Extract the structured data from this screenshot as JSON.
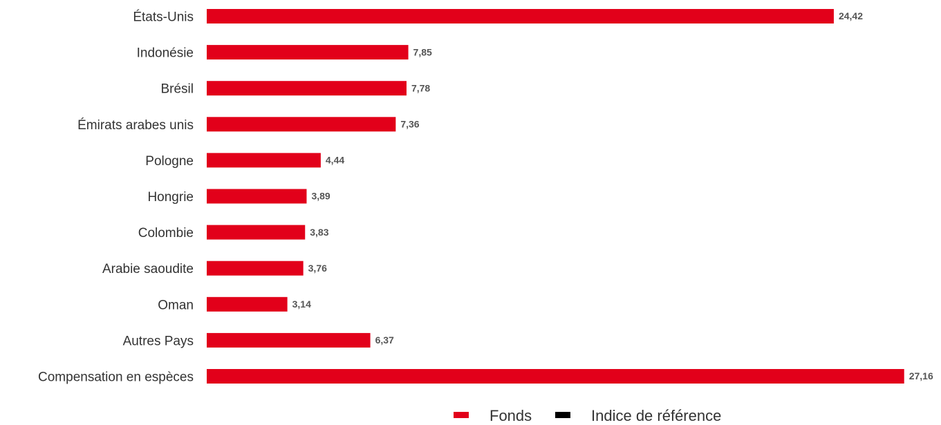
{
  "chart_data": {
    "type": "bar",
    "orientation": "horizontal",
    "categories": [
      "États-Unis",
      "Indonésie",
      "Brésil",
      "Émirats arabes unis",
      "Pologne",
      "Hongrie",
      "Colombie",
      "Arabie saoudite",
      "Oman",
      "Autres Pays",
      "Compensation en espèces"
    ],
    "series": [
      {
        "name": "Fonds",
        "color": "#e2001a",
        "values": [
          24.42,
          7.85,
          7.78,
          7.36,
          4.44,
          3.89,
          3.83,
          3.76,
          3.14,
          6.37,
          27.16
        ],
        "value_labels": [
          "24,42",
          "7,85",
          "7,78",
          "7,36",
          "4,44",
          "3,89",
          "3,83",
          "3,76",
          "3,14",
          "6,37",
          "27,16"
        ]
      },
      {
        "name": "Indice de référence",
        "color": "#000000",
        "values": [
          null,
          null,
          null,
          null,
          null,
          null,
          null,
          null,
          null,
          null,
          null
        ]
      }
    ],
    "legend": "bottom"
  }
}
